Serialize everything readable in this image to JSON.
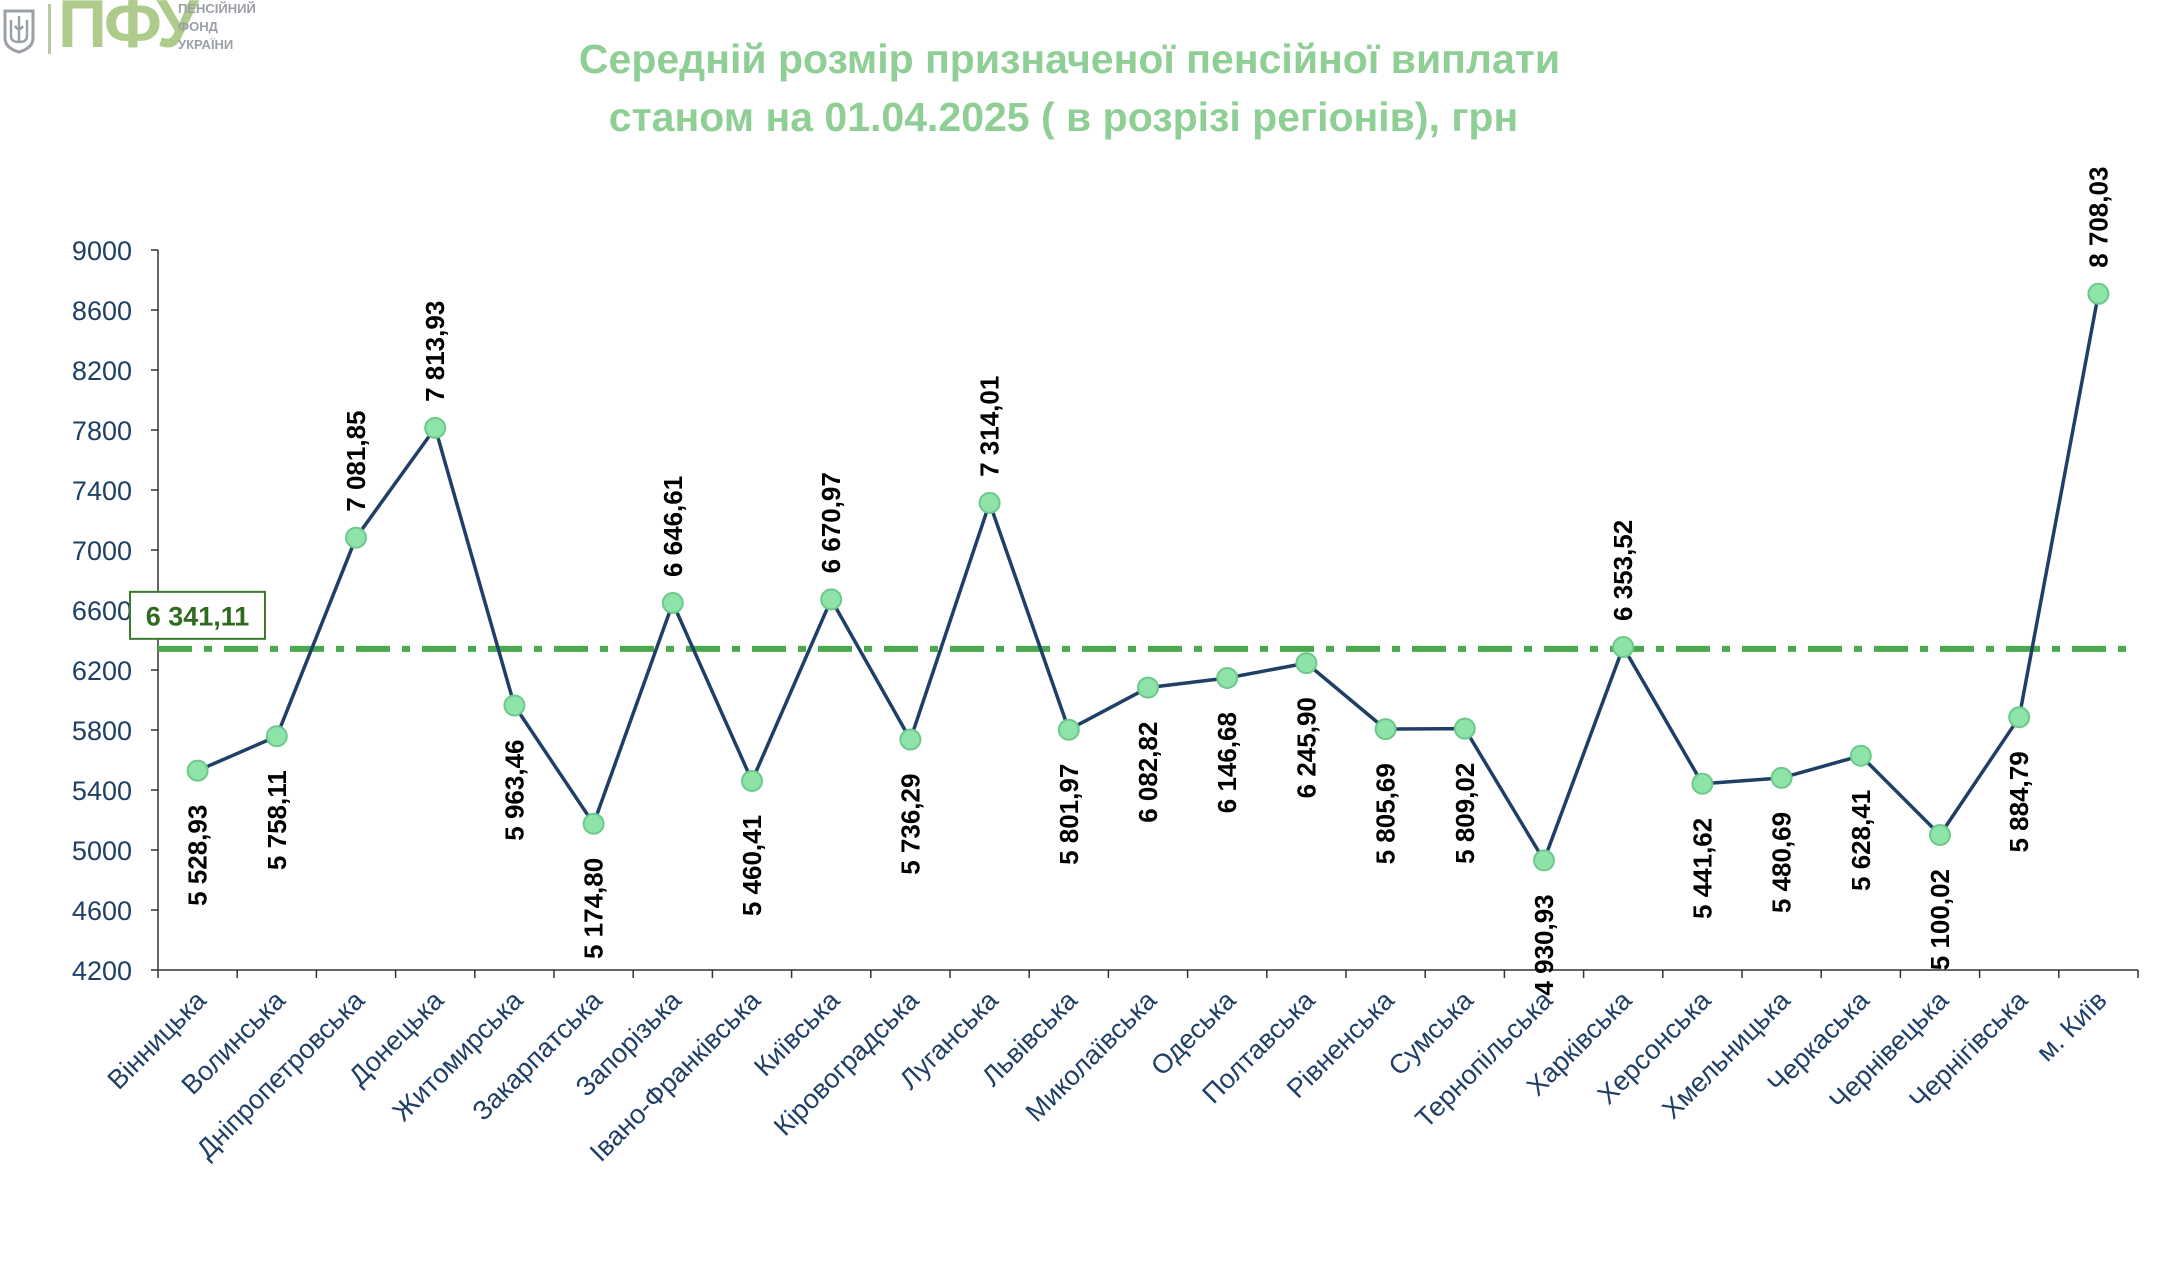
{
  "logo": {
    "mark": "ПФУ",
    "line1": "ПЕНСІЙНИЙ",
    "line2": "ФОНД",
    "line3": "УКРАЇНИ"
  },
  "title": {
    "line1": "Середній розмір призначеної пенсійної виплати",
    "line2": "станом на 01.04.2025 ( в розрізі регіонів), грн"
  },
  "colors": {
    "title": "#8fcf96",
    "line": "#1f3f66",
    "marker_fill": "#8ee3a8",
    "marker_stroke": "#6cc98a",
    "average_line": "#4aa84e",
    "average_box_border": "#3a7a2a",
    "average_box_text": "#2e6b1e",
    "axis_text": "#1f3f66",
    "axis_line": "#333333"
  },
  "chart_data": {
    "type": "line",
    "categories": [
      "Вінницька",
      "Волинська",
      "Дніпропетровська",
      "Донецька",
      "Житомирська",
      "Закарпатська",
      "Запорізька",
      "Івано-Франківська",
      "Київська",
      "Кіровоградська",
      "Луганська",
      "Львівська",
      "Миколаївська",
      "Одеська",
      "Полтавська",
      "Рівненська",
      "Сумська",
      "Тернопільська",
      "Харківська",
      "Херсонська",
      "Хмельницька",
      "Черкаська",
      "Чернівецька",
      "Чернігівська",
      "м. Київ"
    ],
    "values": [
      5528.93,
      5758.11,
      7081.85,
      7813.93,
      5963.46,
      5174.8,
      6646.61,
      5460.41,
      6670.97,
      5736.29,
      7314.01,
      5801.97,
      6082.82,
      6146.68,
      6245.9,
      5805.69,
      5809.02,
      4930.93,
      6353.52,
      5441.62,
      5480.69,
      5628.41,
      5100.02,
      5884.79,
      8708.03
    ],
    "value_labels": [
      "5 528,93",
      "5 758,11",
      "7 081,85",
      "7 813,93",
      "5 963,46",
      "5 174,80",
      "6 646,61",
      "5 460,41",
      "6 670,97",
      "5 736,29",
      "7 314,01",
      "5 801,97",
      "6 082,82",
      "6 146,68",
      "6 245,90",
      "5 805,69",
      "5 809,02",
      "4 930,93",
      "6 353,52",
      "5 441,62",
      "5 480,69",
      "5 628,41",
      "5 100,02",
      "5 884,79",
      "8 708,03"
    ],
    "label_positions": [
      "below",
      "below",
      "above",
      "above",
      "below",
      "below",
      "above",
      "below",
      "above",
      "below",
      "above",
      "below",
      "below",
      "below",
      "below",
      "below",
      "below",
      "below",
      "above",
      "below",
      "below",
      "below",
      "below",
      "below",
      "above"
    ],
    "average": {
      "value": 6341.11,
      "label": "6 341,11"
    },
    "ylim": [
      4200,
      9000
    ],
    "yticks": [
      4200,
      4600,
      5000,
      5400,
      5800,
      6200,
      6600,
      7000,
      7400,
      7800,
      8200,
      8600,
      9000
    ],
    "grid": false,
    "legend": "none"
  }
}
